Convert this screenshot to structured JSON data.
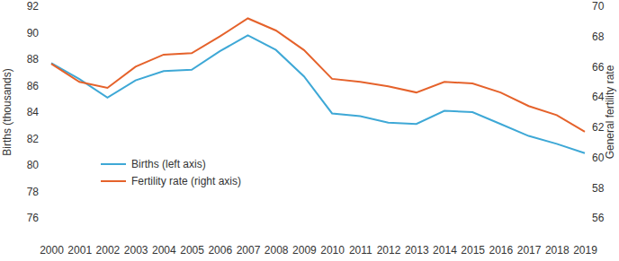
{
  "chart_data": {
    "type": "line",
    "categories": [
      "2000",
      "2001",
      "2002",
      "2003",
      "2004",
      "2005",
      "2006",
      "2007",
      "2008",
      "2009",
      "2010",
      "2011",
      "2012",
      "2013",
      "2014",
      "2015",
      "2016",
      "2017",
      "2018",
      "2019"
    ],
    "y_label": "Births (thousands)",
    "y2_label": "General fertility rate",
    "ylim": [
      76,
      92
    ],
    "yticks": [
      76,
      78,
      80,
      82,
      84,
      86,
      88,
      90,
      92
    ],
    "y2lim": [
      56,
      70
    ],
    "y2ticks": [
      56,
      58,
      60,
      62,
      64,
      66,
      68,
      70
    ],
    "grid": false,
    "legend": "lower left",
    "series": [
      {
        "name": "Births (left axis)",
        "color": "#3ea8d6",
        "values": [
          87.7,
          86.5,
          85.1,
          86.4,
          87.1,
          87.2,
          88.6,
          89.8,
          88.7,
          86.7,
          83.9,
          83.7,
          83.2,
          83.1,
          84.1,
          84.0,
          83.1,
          82.2,
          81.6,
          80.9
        ]
      },
      {
        "name": "Fertility rate (right axis)",
        "color": "#e5622b",
        "axis": "y2",
        "values": [
          66.2,
          65.0,
          64.6,
          66.0,
          66.8,
          66.9,
          68.0,
          69.2,
          68.4,
          67.1,
          65.2,
          65.0,
          64.7,
          64.3,
          65.0,
          64.9,
          64.3,
          63.4,
          62.8,
          61.7
        ]
      }
    ]
  }
}
